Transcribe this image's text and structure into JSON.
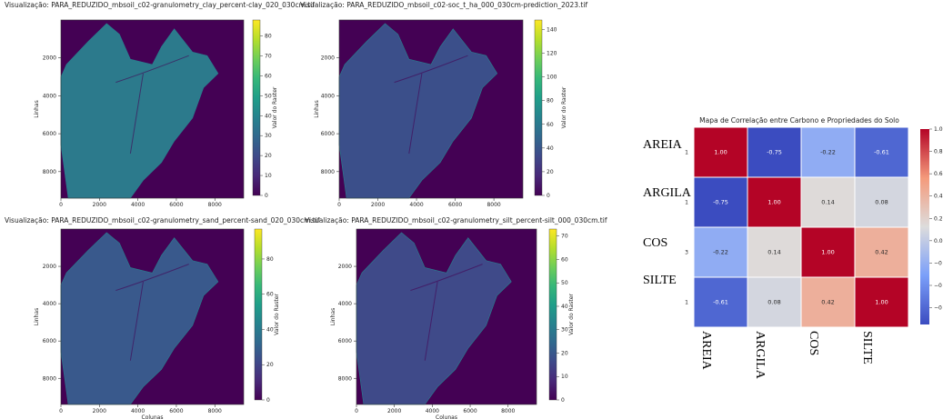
{
  "chart_data": [
    {
      "type": "raster",
      "title": "Visualização: PARA_REDUZIDO_mbsoil_c02-granulometry_clay_percent-clay_020_030cm.tif",
      "ylabel": "Linhas",
      "colorbar_label": "Valor do Raster",
      "xlim": [
        0,
        9500
      ],
      "ylim": [
        9400,
        0
      ],
      "xticks": [
        0,
        2000,
        4000,
        6000,
        8000
      ],
      "yticks": [
        2000,
        4000,
        6000,
        8000
      ],
      "clim": [
        0,
        88
      ],
      "cticks": [
        0,
        10,
        20,
        30,
        40,
        50,
        60,
        70,
        80
      ],
      "colormap": [
        "#440154",
        "#482878",
        "#3e4989",
        "#31688e",
        "#26828e",
        "#1f9e89",
        "#35b779",
        "#6ece58",
        "#b5de2b",
        "#fde725"
      ]
    },
    {
      "type": "raster",
      "title": "Visualização: PARA_REDUZIDO_mbsoil_c02-soc_t_ha_000_030cm-prediction_2023.tif",
      "ylabel": "Linhas",
      "colorbar_label": "Valor do Raster",
      "xlim": [
        0,
        9500
      ],
      "ylim": [
        9400,
        0
      ],
      "xticks": [
        0,
        2000,
        4000,
        6000,
        8000
      ],
      "yticks": [
        2000,
        4000,
        6000,
        8000
      ],
      "clim": [
        0,
        148
      ],
      "cticks": [
        0,
        20,
        40,
        60,
        80,
        100,
        120,
        140
      ],
      "colormap": [
        "#440154",
        "#482878",
        "#3e4989",
        "#31688e",
        "#26828e",
        "#1f9e89",
        "#35b779",
        "#6ece58",
        "#b5de2b",
        "#fde725"
      ]
    },
    {
      "type": "raster",
      "title": "Visualização: PARA_REDUZIDO_mbsoil_c02-granulometry_sand_percent-sand_020_030cm.tif",
      "xlabel": "Colunas",
      "ylabel": "Linhas",
      "colorbar_label": "Valor do Raster",
      "xlim": [
        0,
        9500
      ],
      "ylim": [
        9400,
        0
      ],
      "xticks": [
        0,
        2000,
        4000,
        6000,
        8000
      ],
      "yticks": [
        2000,
        4000,
        6000,
        8000
      ],
      "clim": [
        0,
        97
      ],
      "cticks": [
        0,
        20,
        40,
        60,
        80
      ],
      "colormap": [
        "#440154",
        "#482878",
        "#3e4989",
        "#31688e",
        "#26828e",
        "#1f9e89",
        "#35b779",
        "#6ece58",
        "#b5de2b",
        "#fde725"
      ]
    },
    {
      "type": "raster",
      "title": "Visualização: PARA_REDUZIDO_mbsoil_c02-granulometry_silt_percent-silt_000_030cm.tif",
      "xlabel": "Colunas",
      "ylabel": "Linhas",
      "colorbar_label": "Valor do Raster",
      "xlim": [
        0,
        9500
      ],
      "ylim": [
        9400,
        0
      ],
      "xticks": [
        0,
        2000,
        4000,
        6000,
        8000
      ],
      "yticks": [
        2000,
        4000,
        6000,
        8000
      ],
      "clim": [
        0,
        73
      ],
      "cticks": [
        0,
        10,
        20,
        30,
        40,
        50,
        60,
        70
      ],
      "colormap": [
        "#440154",
        "#482878",
        "#3e4989",
        "#31688e",
        "#26828e",
        "#1f9e89",
        "#35b779",
        "#6ece58",
        "#b5de2b",
        "#fde725"
      ]
    },
    {
      "type": "heatmap",
      "title": "Mapa de Correlação entre Carbono e Propriedades do Solo",
      "rows": [
        "AREIA",
        "ARGILA",
        "COS",
        "SILTE"
      ],
      "columns": [
        "AREIA",
        "ARGILA",
        "COS",
        "SILTE"
      ],
      "row_tick_fragments": [
        "1",
        "1",
        "3",
        "1"
      ],
      "values": [
        [
          1,
          -0.75,
          -0.22,
          -0.61
        ],
        [
          -0.75,
          1,
          0.14,
          0.08
        ],
        [
          -0.22,
          0.14,
          1,
          0.42
        ],
        [
          -0.61,
          0.08,
          0.42,
          1
        ]
      ],
      "value_labels": [
        [
          "1.00",
          "-0.75",
          "-0.22",
          "-0.61"
        ],
        [
          "-0.75",
          "1.00",
          "0.14",
          "0.08"
        ],
        [
          "-0.22",
          "0.14",
          "1.00",
          "0.42"
        ],
        [
          "-0.61",
          "0.08",
          "0.42",
          "1.00"
        ]
      ],
      "clim": [
        -0.75,
        1
      ],
      "cticks": [
        {
          "value": 1,
          "label": "1.0"
        },
        {
          "value": 0.8,
          "label": "0.8"
        },
        {
          "value": 0.6,
          "label": "0.6"
        },
        {
          "value": 0.4,
          "label": "0.4"
        },
        {
          "value": 0.2,
          "label": "0.2"
        },
        {
          "value": 0,
          "label": "0.0"
        },
        {
          "value": -0.2,
          "label": "−0"
        },
        {
          "value": -0.4,
          "label": "−0"
        },
        {
          "value": -0.6,
          "label": "−0"
        }
      ],
      "colormap": [
        "#3b4cc0",
        "#7b9ff9",
        "#dddcdc",
        "#f49a7b",
        "#b40426"
      ]
    }
  ]
}
